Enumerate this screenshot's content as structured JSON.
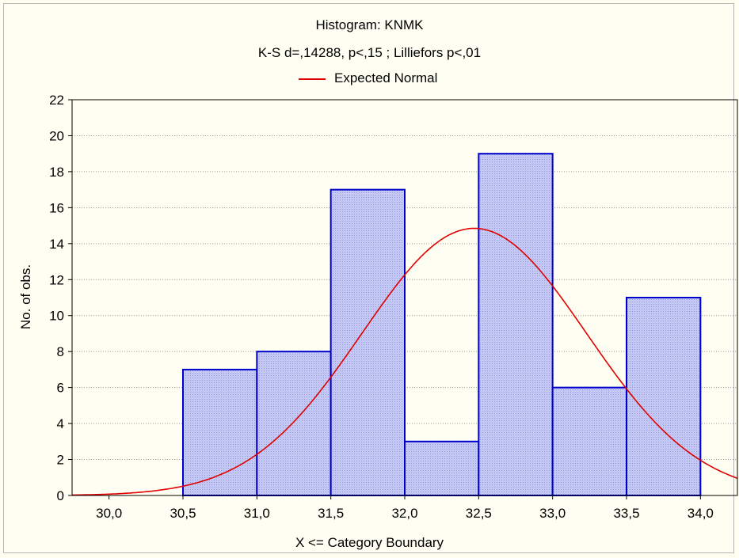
{
  "chart_data": {
    "type": "bar",
    "title": "Histogram: KNMK",
    "subtitle": "K-S d=,14288, p<,15 ; Lilliefors p<,01",
    "xlabel": "X <= Category Boundary",
    "ylabel": "No. of obs.",
    "xlim": [
      29.75,
      34.25
    ],
    "ylim": [
      0,
      22
    ],
    "x_ticks": [
      30.0,
      30.5,
      31.0,
      31.5,
      32.0,
      32.5,
      33.0,
      33.5,
      34.0
    ],
    "x_tick_labels": [
      "30,0",
      "30,5",
      "31,0",
      "31,5",
      "32,0",
      "32,5",
      "33,0",
      "33,5",
      "34,0"
    ],
    "y_ticks": [
      0,
      2,
      4,
      6,
      8,
      10,
      12,
      14,
      16,
      18,
      20,
      22
    ],
    "grid": true,
    "bins": [
      {
        "from": 30.5,
        "to": 31.0,
        "value": 7
      },
      {
        "from": 31.0,
        "to": 31.5,
        "value": 8
      },
      {
        "from": 31.5,
        "to": 32.0,
        "value": 17
      },
      {
        "from": 32.0,
        "to": 32.5,
        "value": 3
      },
      {
        "from": 32.5,
        "to": 33.0,
        "value": 19
      },
      {
        "from": 33.0,
        "to": 33.5,
        "value": 6
      },
      {
        "from": 33.5,
        "to": 34.0,
        "value": 11
      }
    ],
    "series": [
      {
        "name": "Expected Normal",
        "type": "line",
        "mean": 32.47,
        "sd": 0.76,
        "peak": 14.85
      }
    ],
    "legend": "top-center",
    "colors": {
      "bar_fill": "#c4c8f2",
      "bar_border": "#0000cc",
      "curve": "#e00000",
      "background": "#fffef0",
      "grid": "#9a9a9a"
    }
  }
}
